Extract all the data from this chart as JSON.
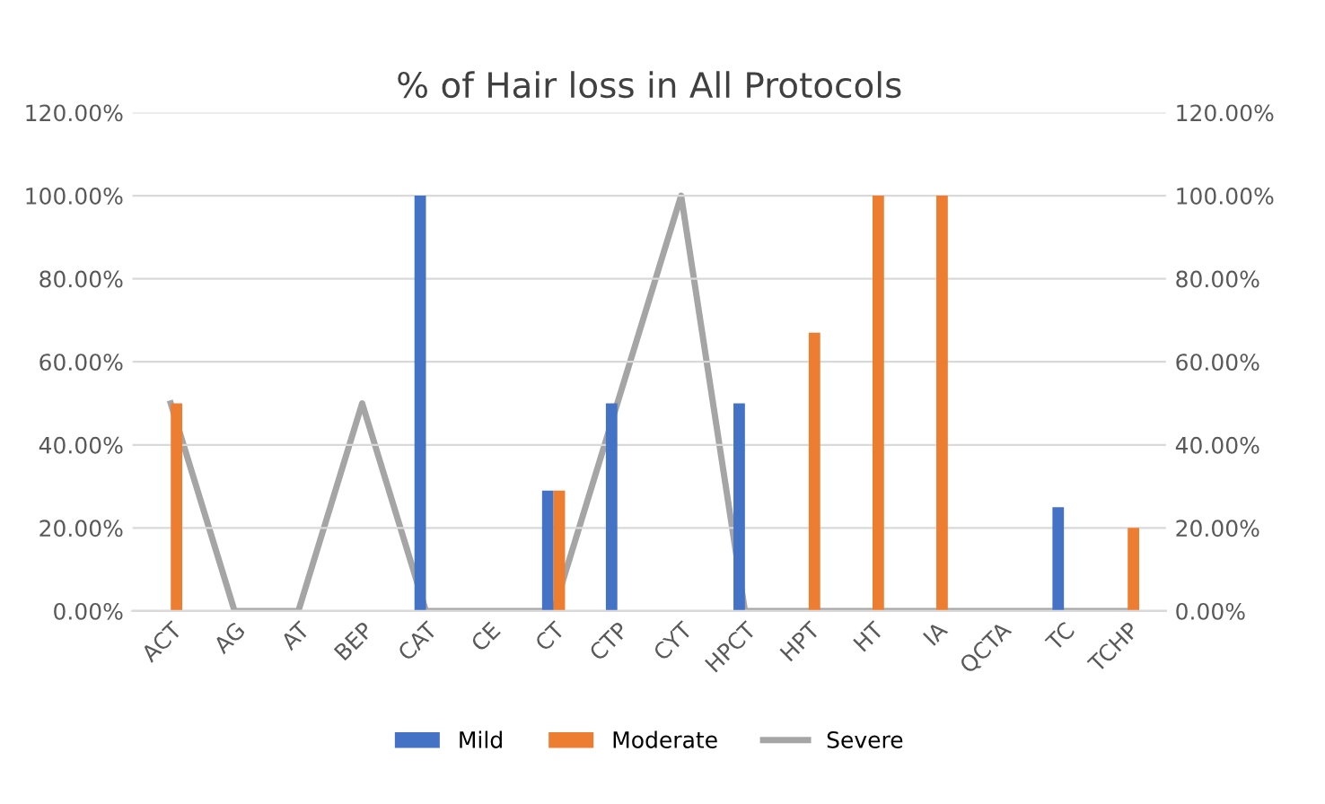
{
  "chart_data": {
    "type": "bar",
    "title": "% of Hair loss in All Protocols",
    "categories": [
      "ACT",
      "AG",
      "AT",
      "BEP",
      "CAT",
      "CE",
      "CT",
      "CTP",
      "CYT",
      "HPCT",
      "HPT",
      "HT",
      "IA",
      "QCTA",
      "TC",
      "TCHP"
    ],
    "series": [
      {
        "name": "Mild",
        "color": "#4472c4",
        "values": [
          0,
          0,
          0,
          0,
          100,
          0,
          29,
          50,
          0,
          50,
          0,
          0,
          0,
          0,
          25,
          0
        ]
      },
      {
        "name": "Moderate",
        "color": "#ed7d31",
        "values": [
          50,
          0,
          0,
          0,
          0,
          0,
          29,
          0,
          0,
          0,
          67,
          100,
          100,
          0,
          0,
          20
        ]
      },
      {
        "name": "Severe",
        "type": "line",
        "axis": "y2",
        "color": "#a5a5a5",
        "values": [
          50,
          0,
          0,
          50,
          0,
          0,
          0,
          50,
          100,
          0,
          0,
          0,
          0,
          0,
          0,
          0
        ]
      }
    ],
    "ylim": [
      0,
      120
    ],
    "yticks": [
      {
        "value": 0,
        "label": "0.00%"
      },
      {
        "value": 20,
        "label": "20.00%"
      },
      {
        "value": 40,
        "label": "40.00%"
      },
      {
        "value": 60,
        "label": "60.00%"
      },
      {
        "value": 80,
        "label": "80.00%"
      },
      {
        "value": 100,
        "label": "100.00%"
      },
      {
        "value": 120,
        "label": "120.00%"
      }
    ],
    "y2lim": [
      0,
      120
    ],
    "y2ticks": [
      {
        "value": 0,
        "label": "0.00%"
      },
      {
        "value": 20,
        "label": "20.00%"
      },
      {
        "value": 40,
        "label": "40.00%"
      },
      {
        "value": 60,
        "label": "60.00%"
      },
      {
        "value": 80,
        "label": "80.00%"
      },
      {
        "value": 100,
        "label": "100.00%"
      },
      {
        "value": 120,
        "label": "120.00%"
      }
    ],
    "grid": "y",
    "legend": "bottom"
  }
}
